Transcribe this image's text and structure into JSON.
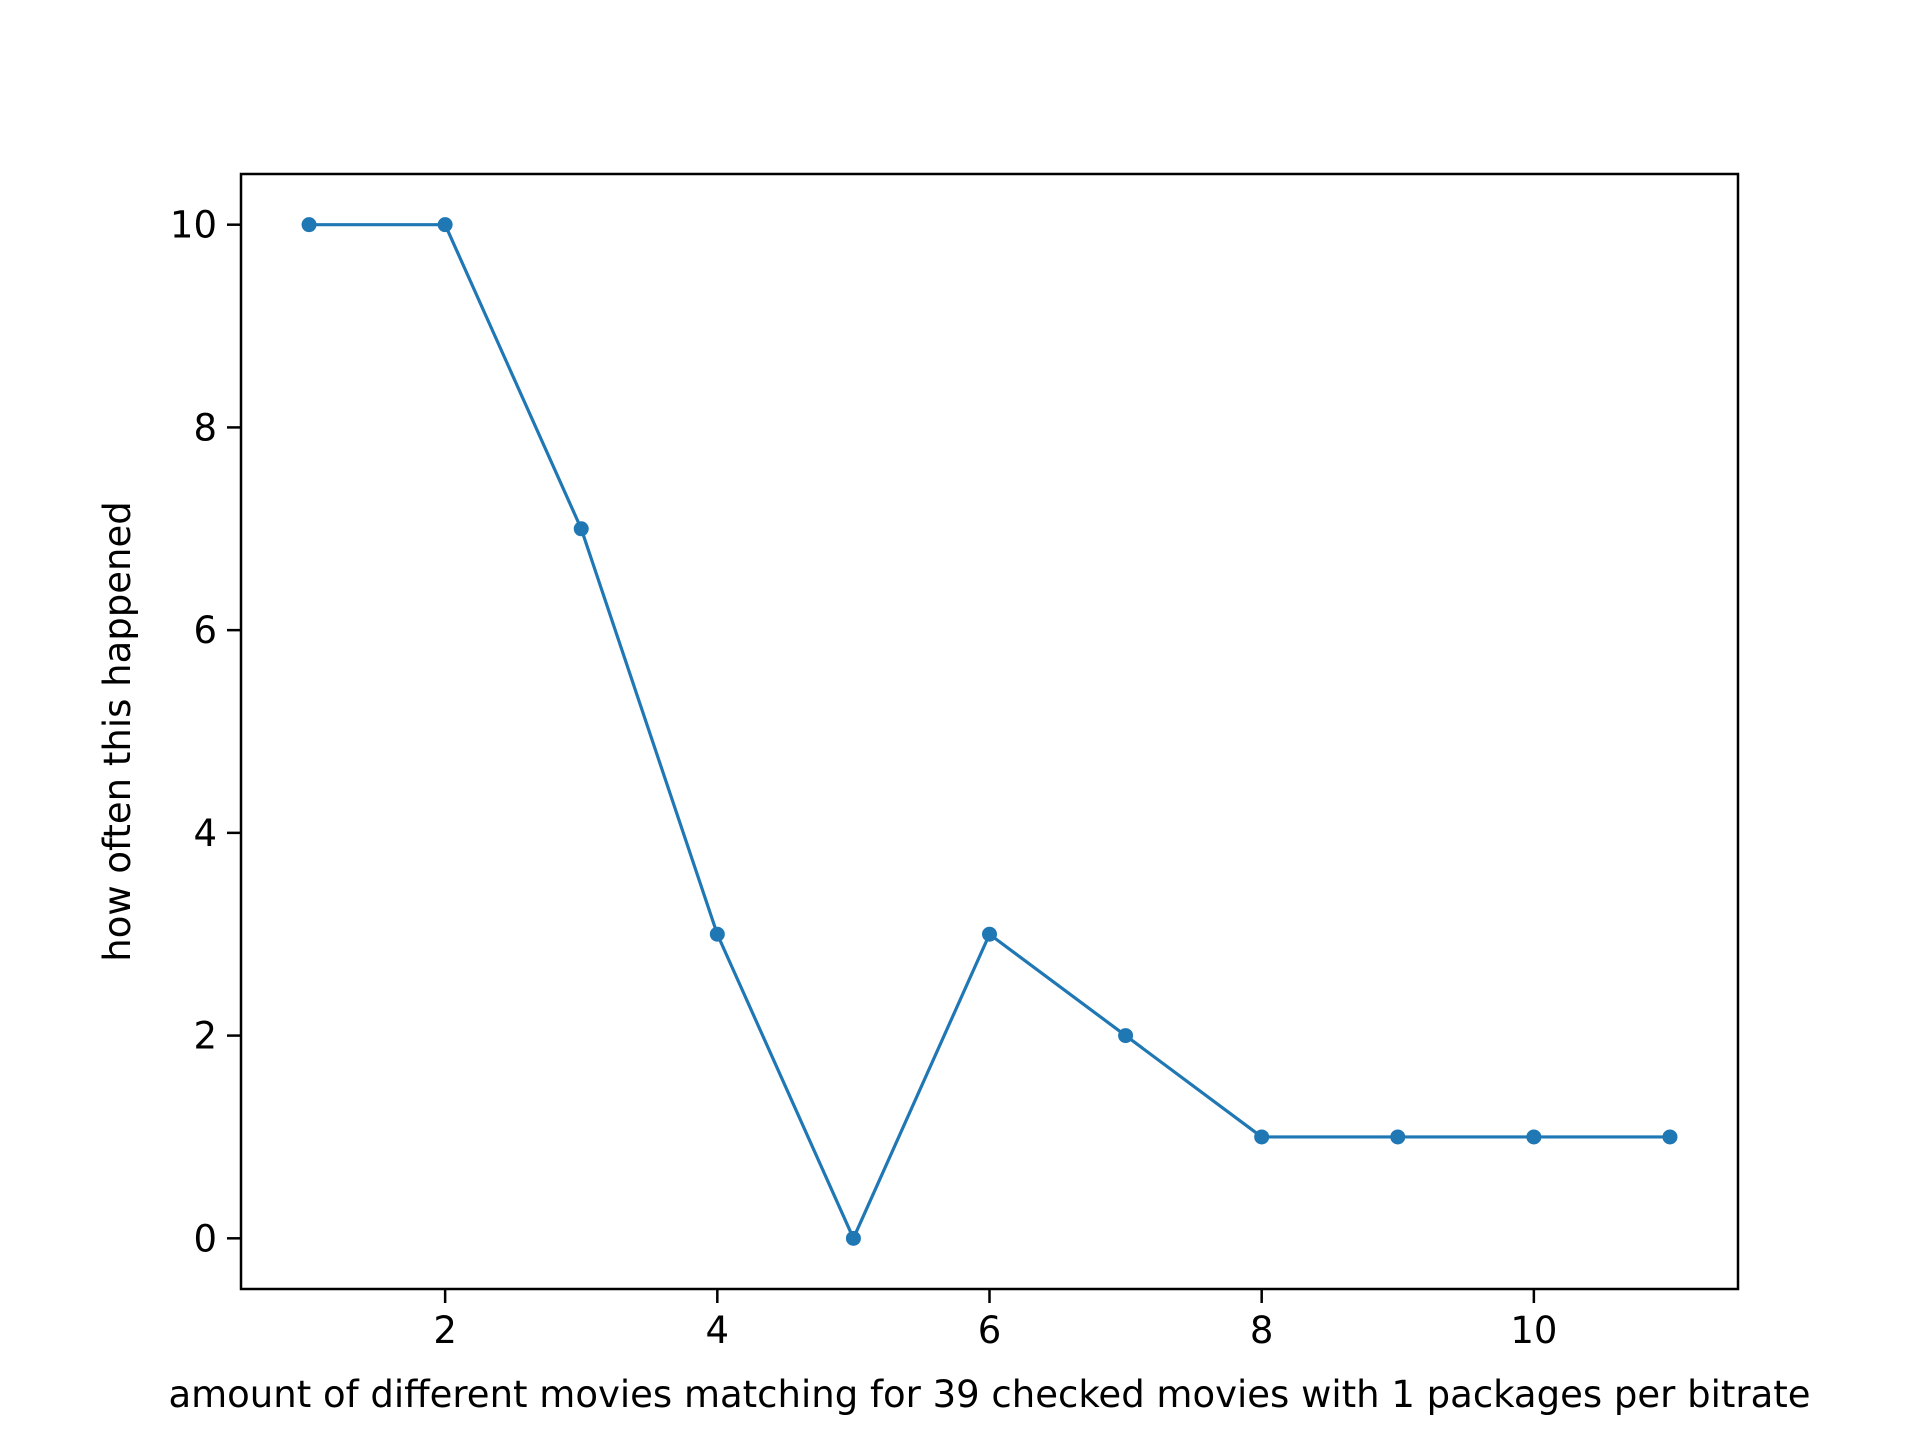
{
  "chart_data": {
    "type": "line",
    "title": "",
    "xlabel": "amount of different movies matching for 39 checked movies with 1 packages per bitrate",
    "ylabel": "how often this happened",
    "xlim": [
      0.5,
      11.5
    ],
    "ylim": [
      -0.5,
      10.5
    ],
    "x_ticks": [
      2,
      4,
      6,
      8,
      10
    ],
    "y_ticks": [
      0,
      2,
      4,
      6,
      8,
      10
    ],
    "grid": false,
    "legend": "none",
    "series": [
      {
        "color": "#1f77b4",
        "marker": "circle",
        "x": [
          1,
          2,
          3,
          4,
          5,
          6,
          7,
          8,
          9,
          10,
          11
        ],
        "y": [
          10,
          10,
          7,
          3,
          0,
          3,
          2,
          1,
          1,
          1,
          1
        ]
      }
    ]
  }
}
